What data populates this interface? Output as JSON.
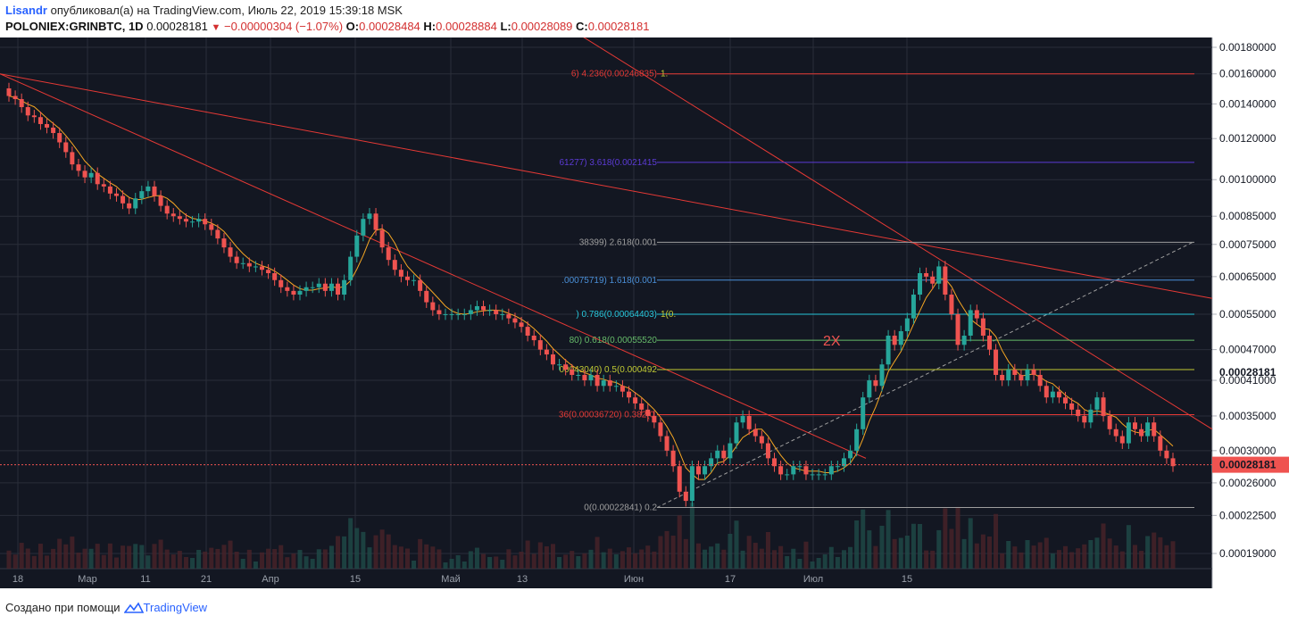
{
  "header": {
    "user": "Lisandr",
    "published": "опубликовал(а) на TradingView.com, Июль 22, 2019 15:39:18 MSK",
    "symbol": "POLONIEX:GRINBTC, 1D",
    "last": "0.00028181",
    "change": "−0.00000304 (−1.07%)",
    "o_label": "O:",
    "o": "0.00028484",
    "h_label": "H:",
    "h": "0.00028884",
    "l_label": "L:",
    "l": "0.00028089",
    "c_label": "C:",
    "c": "0.00028181"
  },
  "footer": {
    "created_with": "Создано при помощи",
    "brand": "TradingView"
  },
  "colors": {
    "bg": "#131722",
    "up": "#26a69a",
    "down": "#ef5350",
    "trend": "#e53935",
    "ma": "#f5a623",
    "price_tag": "#ef5350"
  },
  "chart_data": {
    "type": "candlestick",
    "price_axis": [
      "0.00180000",
      "0.00160000",
      "0.00140000",
      "0.00120000",
      "0.00100000",
      "0.00085000",
      "0.00075000",
      "0.00065000",
      "0.00055000",
      "0.00047000",
      "0.00041000",
      "0.00035000",
      "0.00030000",
      "0.00026000",
      "0.00022500",
      "0.00019000"
    ],
    "last_price_label": "0.00028181",
    "last_price_tag": "0.00028181",
    "time_axis": [
      "18",
      "Мар",
      "11",
      "21",
      "Апр",
      "15",
      "Май",
      "13",
      "Июн",
      "17",
      "Июл",
      "15"
    ],
    "annotation": "2X",
    "fib_levels": [
      {
        "text": "6) 4.236(0.00246835)",
        "extra": "1.",
        "price": 0.0016,
        "color": "#e53935"
      },
      {
        "text": "61277) 3.618(0.0021415",
        "extra": "",
        "price": 0.00108,
        "color": "#5c3bd6"
      },
      {
        "text": "38399) 2.618(0.001",
        "extra": "",
        "price": 0.000757,
        "color": "#9e9e9e"
      },
      {
        "text": ".00075719) 1.618(0.001",
        "extra": "",
        "price": 0.00064,
        "color": "#4a90d9"
      },
      {
        "text": ") 0.786(0.00064403)",
        "extra": "1(0.",
        "price": 0.00055,
        "color": "#26c6da"
      },
      {
        "text": "80) 0.618(0.00055520",
        "extra": "",
        "price": 0.00049,
        "color": "#66bb6a"
      },
      {
        "text": "00043040) 0.5(0.000492",
        "extra": "",
        "price": 0.00043,
        "color": "#c0ca33"
      },
      {
        "text": "36(0.00036720) 0.382(0.",
        "extra": "",
        "price": 0.000352,
        "color": "#e53935"
      },
      {
        "text": "0(0.00022841) 0.2",
        "extra": "",
        "price": 0.000233,
        "color": "#9e9e9e"
      }
    ],
    "candles_close": [
      0.00145,
      0.00143,
      0.00138,
      0.00133,
      0.00132,
      0.00128,
      0.00126,
      0.00123,
      0.00118,
      0.00113,
      0.00107,
      0.00104,
      0.00101,
      0.00103,
      0.00098,
      0.00097,
      0.00094,
      0.00093,
      0.0009,
      0.00088,
      0.00092,
      0.00095,
      0.00097,
      0.00093,
      0.00089,
      0.00086,
      0.00085,
      0.00084,
      0.00083,
      0.00083,
      0.00084,
      0.00082,
      0.0008,
      0.00077,
      0.00074,
      0.00071,
      0.00069,
      0.00069,
      0.00068,
      0.00068,
      0.00067,
      0.00066,
      0.00064,
      0.00062,
      0.00061,
      0.0006,
      0.00061,
      0.00062,
      0.00062,
      0.00063,
      0.00061,
      0.00063,
      0.0006,
      0.00064,
      0.00071,
      0.00078,
      0.00084,
      0.00086,
      0.0008,
      0.00074,
      0.0007,
      0.00067,
      0.00065,
      0.00064,
      0.00064,
      0.00061,
      0.00058,
      0.00056,
      0.00055,
      0.00055,
      0.00055,
      0.00055,
      0.00055,
      0.00056,
      0.00057,
      0.00056,
      0.00056,
      0.00055,
      0.00055,
      0.00054,
      0.00053,
      0.00052,
      0.0005,
      0.00049,
      0.00047,
      0.00046,
      0.00044,
      0.00044,
      0.00043,
      0.00042,
      0.00042,
      0.00041,
      0.00042,
      0.0004,
      0.00041,
      0.0004,
      0.0004,
      0.00039,
      0.00038,
      0.00037,
      0.00036,
      0.00035,
      0.00034,
      0.00032,
      0.0003,
      0.00028,
      0.00025,
      0.00024,
      0.00028,
      0.00027,
      0.00028,
      0.00029,
      0.0003,
      0.00029,
      0.00031,
      0.00034,
      0.00035,
      0.00033,
      0.00032,
      0.00031,
      0.00029,
      0.00028,
      0.00027,
      0.00027,
      0.00028,
      0.00028,
      0.00027,
      0.00027,
      0.00027,
      0.00027,
      0.00028,
      0.00028,
      0.00029,
      0.0003,
      0.00033,
      0.00038,
      0.00041,
      0.0004,
      0.00044,
      0.0005,
      0.00048,
      0.00051,
      0.00054,
      0.0006,
      0.00066,
      0.00065,
      0.00063,
      0.00068,
      0.0006,
      0.00055,
      0.00048,
      0.0005,
      0.00056,
      0.00054,
      0.0005,
      0.00047,
      0.00042,
      0.00041,
      0.00043,
      0.00042,
      0.00041,
      0.00043,
      0.00042,
      0.0004,
      0.00038,
      0.00039,
      0.00038,
      0.00037,
      0.00036,
      0.00035,
      0.00034,
      0.00036,
      0.00038,
      0.00035,
      0.00033,
      0.00032,
      0.00031,
      0.00034,
      0.00033,
      0.00032,
      0.00034,
      0.00032,
      0.0003,
      0.00029,
      0.00028
    ]
  }
}
